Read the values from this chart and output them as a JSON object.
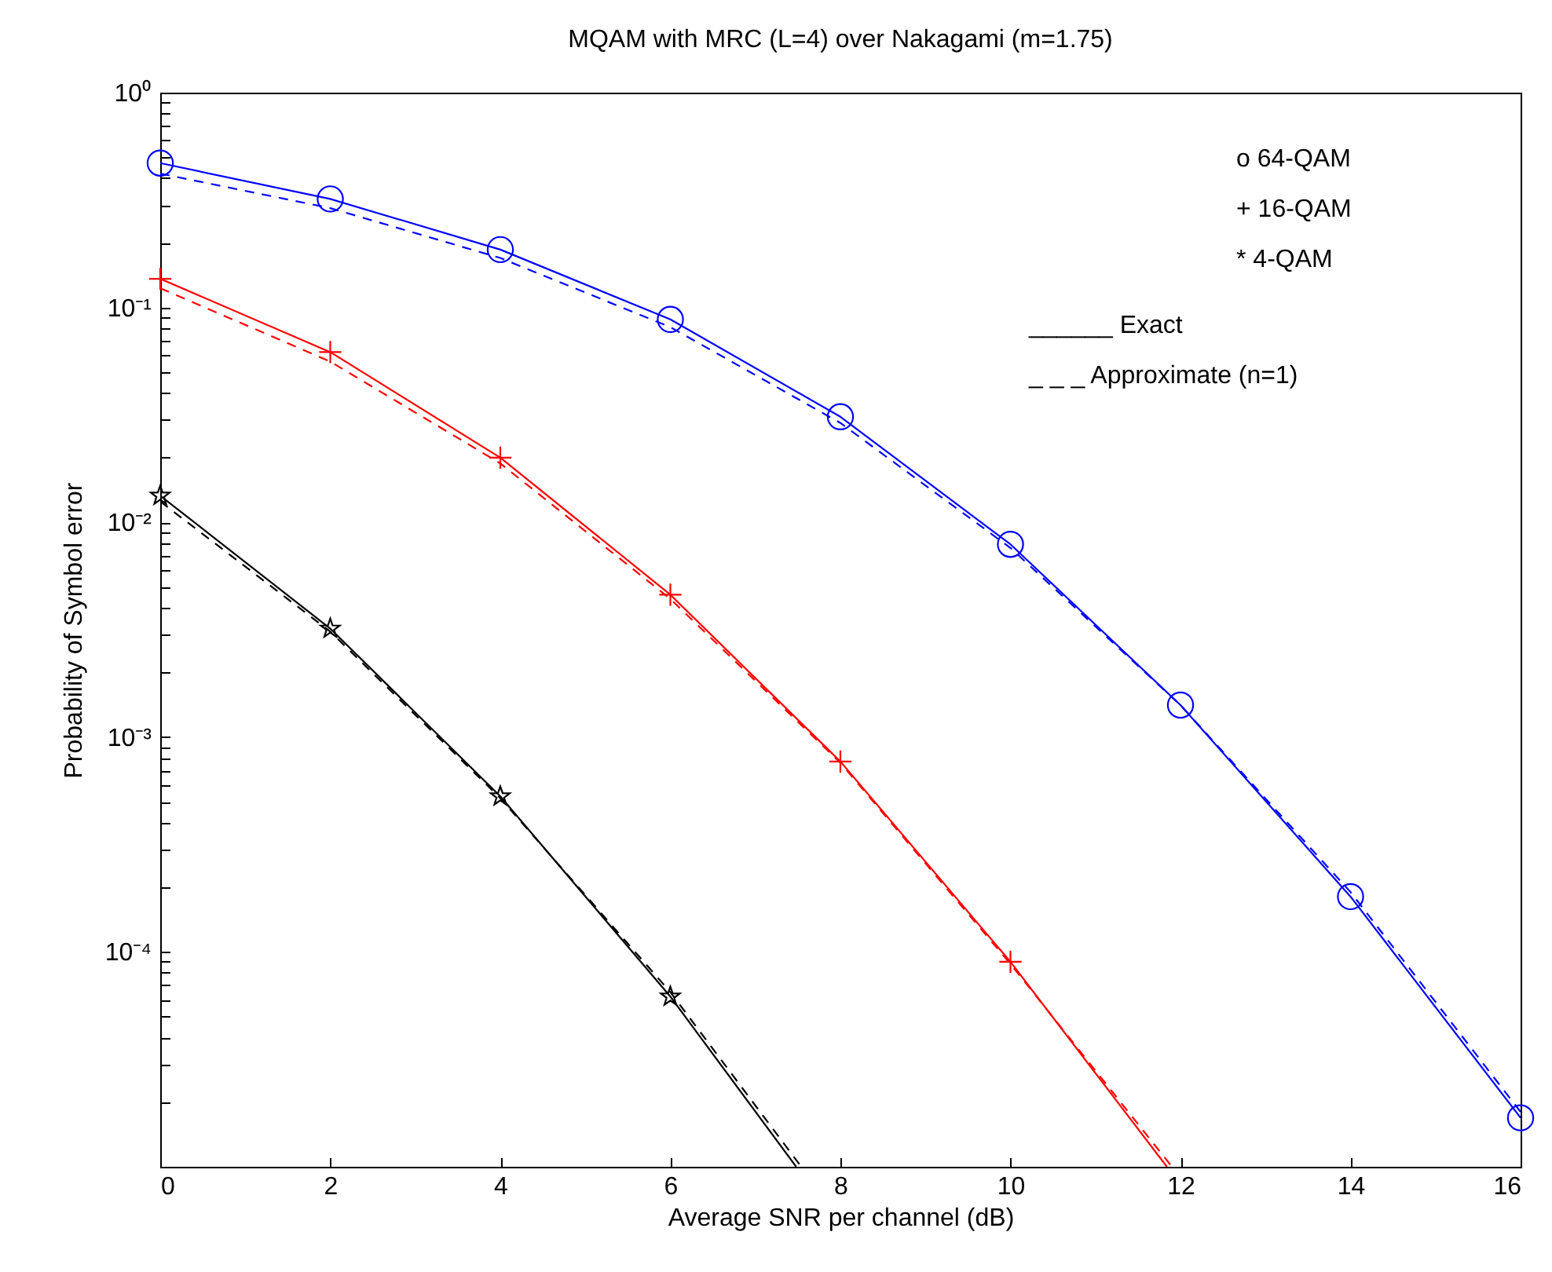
{
  "chart_data": {
    "type": "line",
    "title": "MQAM with MRC (L=4) over Nakagami (m=1.75)",
    "xlabel": "Average SNR per channel (dB)",
    "ylabel": "Probability of Symbol error",
    "log": "y",
    "grid": false,
    "xlim": [
      0,
      16
    ],
    "xticks": [
      0,
      2,
      4,
      6,
      8,
      10,
      12,
      14,
      16
    ],
    "ylim": [
      1e-05,
      1
    ],
    "yticks": [
      {
        "value": 1e-05,
        "label": null
      },
      {
        "value": 2e-05,
        "label": null
      },
      {
        "value": 3e-05,
        "label": null
      },
      {
        "value": 4e-05,
        "label": null
      },
      {
        "value": 5e-05,
        "label": null
      },
      {
        "value": 6e-05,
        "label": null
      },
      {
        "value": 7e-05,
        "label": null
      },
      {
        "value": 8e-05,
        "label": null
      },
      {
        "value": 9e-05,
        "label": null
      },
      {
        "value": 0.0001,
        "label": "10⁻⁴"
      },
      {
        "value": 0.0002,
        "label": null
      },
      {
        "value": 0.0003,
        "label": null
      },
      {
        "value": 0.0004,
        "label": null
      },
      {
        "value": 0.0005,
        "label": null
      },
      {
        "value": 0.0006,
        "label": null
      },
      {
        "value": 0.0007,
        "label": null
      },
      {
        "value": 0.0008,
        "label": null
      },
      {
        "value": 0.0009,
        "label": null
      },
      {
        "value": 0.001,
        "label": "10⁻³"
      },
      {
        "value": 0.002,
        "label": null
      },
      {
        "value": 0.003,
        "label": null
      },
      {
        "value": 0.004,
        "label": null
      },
      {
        "value": 0.005,
        "label": null
      },
      {
        "value": 0.006,
        "label": null
      },
      {
        "value": 0.007,
        "label": null
      },
      {
        "value": 0.008,
        "label": null
      },
      {
        "value": 0.009,
        "label": null
      },
      {
        "value": 0.01,
        "label": "10⁻²"
      },
      {
        "value": 0.02,
        "label": null
      },
      {
        "value": 0.03,
        "label": null
      },
      {
        "value": 0.04,
        "label": null
      },
      {
        "value": 0.05,
        "label": null
      },
      {
        "value": 0.06,
        "label": null
      },
      {
        "value": 0.07,
        "label": null
      },
      {
        "value": 0.08,
        "label": null
      },
      {
        "value": 0.09,
        "label": null
      },
      {
        "value": 0.1,
        "label": "10⁻¹"
      },
      {
        "value": 0.2,
        "label": null
      },
      {
        "value": 0.3,
        "label": null
      },
      {
        "value": 0.4,
        "label": null
      },
      {
        "value": 0.5,
        "label": null
      },
      {
        "value": 0.6,
        "label": null
      },
      {
        "value": 0.7,
        "label": null
      },
      {
        "value": 0.8,
        "label": null
      },
      {
        "value": 0.9,
        "label": null
      },
      {
        "value": 1,
        "label": "10⁰"
      }
    ],
    "annotations": [
      "o 64-QAM",
      "+ 16-QAM",
      "* 4-QAM",
      "______ Exact",
      "_ _ _  Approximate (n=1)"
    ],
    "series": [
      {
        "color": "#0000ff",
        "marker": "circle",
        "line_style": "solid",
        "x": [
          0,
          2,
          4,
          6,
          8,
          10,
          12,
          14,
          16
        ],
        "values": [
          0.47,
          0.32,
          0.186,
          0.088,
          0.031,
          0.0079,
          0.00141,
          0.000181,
          1.69e-05
        ]
      },
      {
        "color": "#0000ff",
        "marker": "none",
        "line_style": "dashed",
        "x": [
          0,
          2,
          4,
          6,
          8,
          10,
          12,
          14,
          16
        ],
        "values": [
          0.42,
          0.29,
          0.17,
          0.081,
          0.029,
          0.0076,
          0.00141,
          0.00019,
          1.8e-05
        ]
      },
      {
        "color": "#ff0000",
        "marker": "cross",
        "line_style": "solid",
        "x": [
          0,
          2,
          4,
          6,
          8,
          10,
          11.84
        ],
        "values": [
          0.136,
          0.062,
          0.02,
          0.0046,
          0.00077,
          9e-05,
          1e-05
        ]
      },
      {
        "color": "#ff0000",
        "marker": "none",
        "line_style": "dashed",
        "x": [
          0,
          2,
          4,
          6,
          8,
          10,
          11.9
        ],
        "values": [
          0.123,
          0.056,
          0.0188,
          0.0044,
          0.00076,
          8.8e-05,
          1e-05
        ]
      },
      {
        "color": "#000000",
        "marker": "star",
        "line_style": "solid",
        "x": [
          0,
          2,
          4,
          6,
          7.48
        ],
        "values": [
          0.0133,
          0.0032,
          0.00053,
          6.2e-05,
          1e-05
        ]
      },
      {
        "color": "#000000",
        "marker": "none",
        "line_style": "dashed",
        "x": [
          0,
          2,
          4,
          6,
          7.54
        ],
        "values": [
          0.0125,
          0.0031,
          0.00052,
          6.5e-05,
          1e-05
        ]
      }
    ]
  }
}
